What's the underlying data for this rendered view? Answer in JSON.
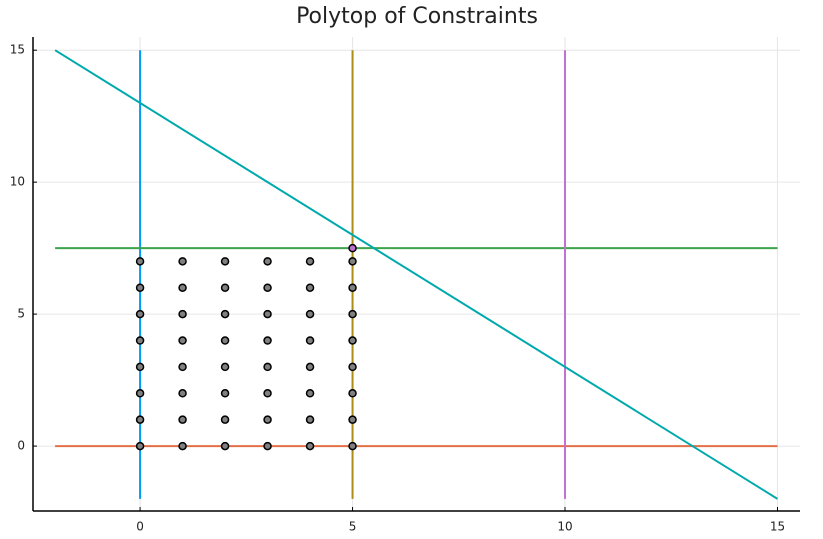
{
  "chart_data": {
    "type": "line",
    "title": "Polytop of Constraints",
    "xlim": [
      -2.52,
      15.53
    ],
    "ylim": [
      -2.46,
      15.5
    ],
    "xticks": [
      0,
      5,
      10,
      15
    ],
    "yticks": [
      0,
      5,
      10,
      15
    ],
    "grid": true,
    "series": [
      {
        "type": "line",
        "color": "#009af9",
        "x": [
          0,
          0
        ],
        "values": [
          -2,
          15
        ]
      },
      {
        "type": "line",
        "color": "#e26f46",
        "x": [
          -2,
          15
        ],
        "values": [
          0,
          0
        ]
      },
      {
        "type": "line",
        "color": "#3da44d",
        "x": [
          -2,
          15
        ],
        "values": [
          7.5,
          7.5
        ]
      },
      {
        "type": "line",
        "color": "#c271d2",
        "x": [
          10,
          10
        ],
        "values": [
          -2,
          15
        ]
      },
      {
        "type": "line",
        "color": "#ac8d18",
        "x": [
          5,
          5
        ],
        "values": [
          -2,
          15
        ]
      },
      {
        "type": "line",
        "color": "#00a9ad",
        "x": [
          -2,
          15
        ],
        "values": [
          15,
          -2
        ]
      },
      {
        "type": "scatter",
        "color": "#808080",
        "x": [
          0,
          0,
          0,
          0,
          0,
          0,
          0,
          0,
          1,
          1,
          1,
          1,
          1,
          1,
          1,
          1,
          2,
          2,
          2,
          2,
          2,
          2,
          2,
          2,
          3,
          3,
          3,
          3,
          3,
          3,
          3,
          3,
          4,
          4,
          4,
          4,
          4,
          4,
          4,
          4,
          5,
          5,
          5,
          5,
          5,
          5,
          5,
          5
        ],
        "values": [
          0,
          1,
          2,
          3,
          4,
          5,
          6,
          7,
          0,
          1,
          2,
          3,
          4,
          5,
          6,
          7,
          0,
          1,
          2,
          3,
          4,
          5,
          6,
          7,
          0,
          1,
          2,
          3,
          4,
          5,
          6,
          7,
          0,
          1,
          2,
          3,
          4,
          5,
          6,
          7,
          0,
          1,
          2,
          3,
          4,
          5,
          6,
          7
        ]
      },
      {
        "type": "scatter",
        "color": "#c271d2",
        "x": [
          5
        ],
        "values": [
          7.5
        ]
      }
    ]
  }
}
